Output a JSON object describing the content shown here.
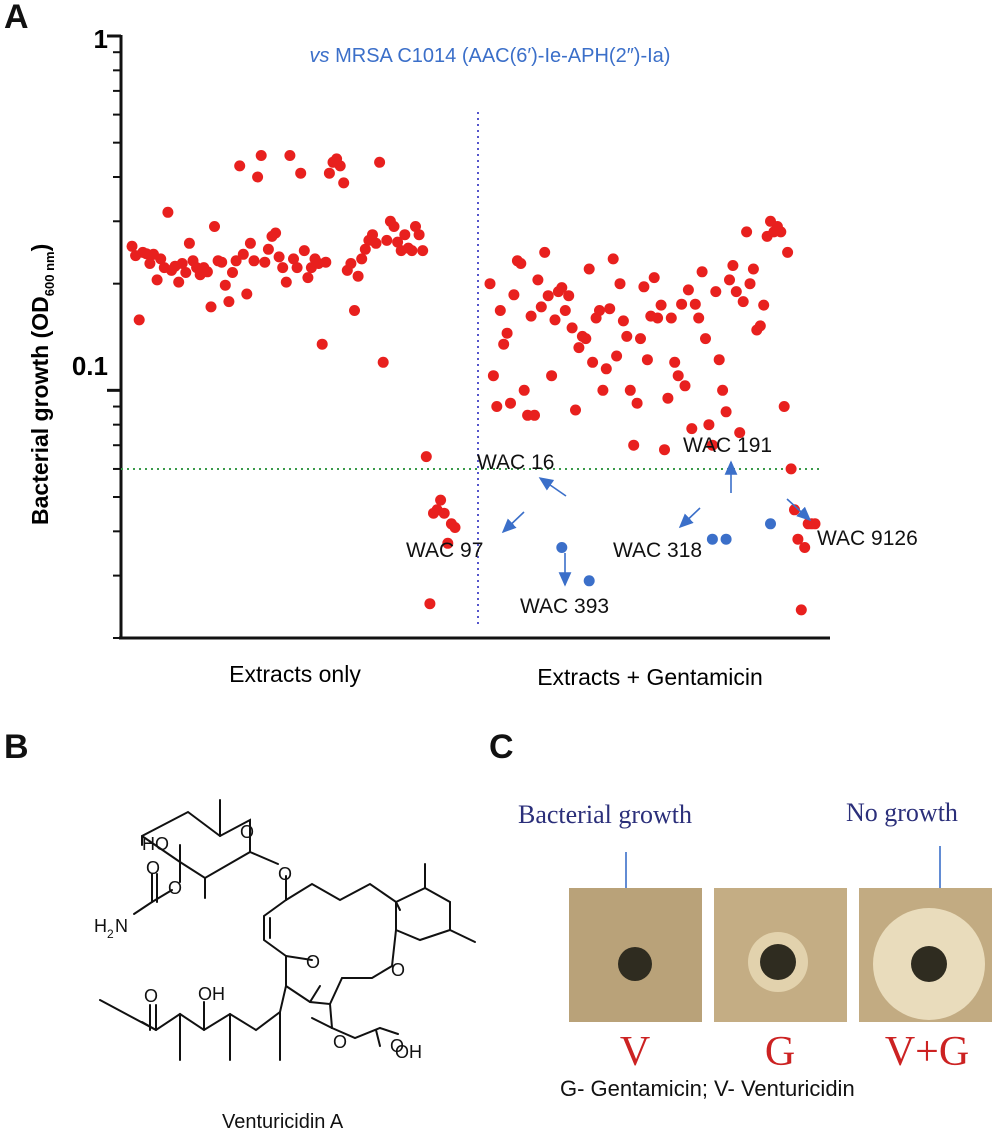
{
  "panels": {
    "a": "A",
    "b": "B",
    "c": "C"
  },
  "chart_data": {
    "type": "scatter",
    "title_prefix": "vs",
    "title": "MRSA C1014 (AAC(6′)-Ie-APH(2″)-Ia)",
    "ylabel_main": "Bacterial  growth (OD",
    "ylabel_sub": "600 nm",
    "ylabel_end": ")",
    "yscale": "log",
    "ylim": [
      0.02,
      1
    ],
    "yticks": [
      "1",
      "0.1"
    ],
    "threshold": 0.06,
    "groups": [
      "Extracts  only",
      "Extracts  + Gentamicin"
    ],
    "series": [
      {
        "name": "Extracts only",
        "color": "#e8201e",
        "points": [
          [
            1,
            0.255
          ],
          [
            2,
            0.24
          ],
          [
            3,
            0.158
          ],
          [
            4,
            0.245
          ],
          [
            5,
            0.243
          ],
          [
            6,
            0.228
          ],
          [
            7,
            0.242
          ],
          [
            8,
            0.205
          ],
          [
            9,
            0.235
          ],
          [
            10,
            0.222
          ],
          [
            11,
            0.318
          ],
          [
            12,
            0.218
          ],
          [
            13,
            0.224
          ],
          [
            14,
            0.202
          ],
          [
            15,
            0.228
          ],
          [
            16,
            0.215
          ],
          [
            17,
            0.26
          ],
          [
            18,
            0.232
          ],
          [
            19,
            0.222
          ],
          [
            20,
            0.212
          ],
          [
            21,
            0.222
          ],
          [
            22,
            0.216
          ],
          [
            23,
            0.172
          ],
          [
            24,
            0.29
          ],
          [
            25,
            0.232
          ],
          [
            26,
            0.23
          ],
          [
            27,
            0.198
          ],
          [
            28,
            0.178
          ],
          [
            29,
            0.215
          ],
          [
            30,
            0.232
          ],
          [
            31,
            0.43
          ],
          [
            32,
            0.242
          ],
          [
            33,
            0.187
          ],
          [
            34,
            0.26
          ],
          [
            35,
            0.232
          ],
          [
            36,
            0.4
          ],
          [
            37,
            0.46
          ],
          [
            38,
            0.23
          ],
          [
            39,
            0.25
          ],
          [
            40,
            0.272
          ],
          [
            41,
            0.278
          ],
          [
            42,
            0.238
          ],
          [
            43,
            0.222
          ],
          [
            44,
            0.202
          ],
          [
            45,
            0.46
          ],
          [
            46,
            0.235
          ],
          [
            47,
            0.222
          ],
          [
            48,
            0.41
          ],
          [
            49,
            0.248
          ],
          [
            50,
            0.208
          ],
          [
            51,
            0.222
          ],
          [
            52,
            0.235
          ],
          [
            53,
            0.228
          ],
          [
            54,
            0.135
          ],
          [
            55,
            0.23
          ],
          [
            56,
            0.41
          ],
          [
            57,
            0.44
          ],
          [
            58,
            0.45
          ],
          [
            59,
            0.43
          ],
          [
            60,
            0.385
          ],
          [
            61,
            0.218
          ],
          [
            62,
            0.228
          ],
          [
            63,
            0.168
          ],
          [
            64,
            0.21
          ],
          [
            65,
            0.235
          ],
          [
            66,
            0.25
          ],
          [
            67,
            0.265
          ],
          [
            68,
            0.275
          ],
          [
            69,
            0.26
          ],
          [
            70,
            0.44
          ],
          [
            71,
            0.12
          ],
          [
            72,
            0.265
          ],
          [
            73,
            0.3
          ],
          [
            74,
            0.29
          ],
          [
            75,
            0.262
          ],
          [
            76,
            0.248
          ],
          [
            77,
            0.275
          ],
          [
            78,
            0.252
          ],
          [
            79,
            0.248
          ],
          [
            80,
            0.29
          ],
          [
            81,
            0.275
          ],
          [
            82,
            0.248
          ],
          [
            83,
            0.065
          ],
          [
            84,
            0.025
          ],
          [
            85,
            0.045
          ],
          [
            86,
            0.046
          ],
          [
            87,
            0.049
          ],
          [
            88,
            0.045
          ],
          [
            89,
            0.037
          ],
          [
            90,
            0.042
          ],
          [
            91,
            0.041
          ]
        ]
      },
      {
        "name": "Extracts + Gentamicin",
        "color": "#e8201e",
        "points": [
          [
            1,
            0.2
          ],
          [
            2,
            0.11
          ],
          [
            3,
            0.09
          ],
          [
            4,
            0.168
          ],
          [
            5,
            0.135
          ],
          [
            6,
            0.145
          ],
          [
            7,
            0.092
          ],
          [
            8,
            0.186
          ],
          [
            9,
            0.232
          ],
          [
            10,
            0.228
          ],
          [
            11,
            0.1
          ],
          [
            12,
            0.085
          ],
          [
            13,
            0.162
          ],
          [
            14,
            0.085
          ],
          [
            15,
            0.205
          ],
          [
            16,
            0.172
          ],
          [
            17,
            0.245
          ],
          [
            18,
            0.185
          ],
          [
            19,
            0.11
          ],
          [
            20,
            0.158
          ],
          [
            21,
            0.19
          ],
          [
            22,
            0.195
          ],
          [
            23,
            0.168
          ],
          [
            24,
            0.185
          ],
          [
            25,
            0.15
          ],
          [
            26,
            0.088
          ],
          [
            27,
            0.132
          ],
          [
            28,
            0.142
          ],
          [
            29,
            0.14
          ],
          [
            30,
            0.22
          ],
          [
            31,
            0.12
          ],
          [
            32,
            0.16
          ],
          [
            33,
            0.168
          ],
          [
            34,
            0.1
          ],
          [
            35,
            0.115
          ],
          [
            36,
            0.17
          ],
          [
            37,
            0.235
          ],
          [
            38,
            0.125
          ],
          [
            39,
            0.2
          ],
          [
            40,
            0.157
          ],
          [
            41,
            0.142
          ],
          [
            42,
            0.1
          ],
          [
            43,
            0.07
          ],
          [
            44,
            0.092
          ],
          [
            45,
            0.14
          ],
          [
            46,
            0.196
          ],
          [
            47,
            0.122
          ],
          [
            48,
            0.162
          ],
          [
            49,
            0.208
          ],
          [
            50,
            0.16
          ],
          [
            51,
            0.174
          ],
          [
            52,
            0.068
          ],
          [
            53,
            0.095
          ],
          [
            54,
            0.16
          ],
          [
            55,
            0.12
          ],
          [
            56,
            0.11
          ],
          [
            57,
            0.175
          ],
          [
            58,
            0.103
          ],
          [
            59,
            0.192
          ],
          [
            60,
            0.078
          ],
          [
            61,
            0.175
          ],
          [
            62,
            0.16
          ],
          [
            63,
            0.216
          ],
          [
            64,
            0.14
          ],
          [
            65,
            0.08
          ],
          [
            66,
            0.07
          ],
          [
            67,
            0.19
          ],
          [
            68,
            0.122
          ],
          [
            69,
            0.1
          ],
          [
            70,
            0.087
          ],
          [
            71,
            0.205
          ],
          [
            72,
            0.225
          ],
          [
            73,
            0.19
          ],
          [
            74,
            0.076
          ],
          [
            75,
            0.178
          ],
          [
            76,
            0.28
          ],
          [
            77,
            0.2
          ],
          [
            78,
            0.22
          ],
          [
            79,
            0.148
          ],
          [
            80,
            0.152
          ],
          [
            81,
            0.174
          ],
          [
            82,
            0.272
          ],
          [
            83,
            0.3
          ],
          [
            84,
            0.28
          ],
          [
            85,
            0.29
          ],
          [
            86,
            0.28
          ],
          [
            87,
            0.09
          ],
          [
            88,
            0.245
          ],
          [
            89,
            0.06
          ],
          [
            90,
            0.046
          ],
          [
            91,
            0.038
          ],
          [
            92,
            0.024
          ],
          [
            93,
            0.036
          ],
          [
            94,
            0.042
          ],
          [
            95,
            0.042
          ],
          [
            96,
            0.042
          ]
        ]
      },
      {
        "name": "Hits",
        "color": "#3b6fc9",
        "points": [
          {
            "label": "WAC 16",
            "x": 22,
            "y": 0.036
          },
          {
            "label": "WAC 393",
            "x": 30,
            "y": 0.029
          },
          {
            "label": "WAC 318",
            "x": 66,
            "y": 0.038
          },
          {
            "label": "WAC 191",
            "x": 70,
            "y": 0.038
          },
          {
            "label": "WAC 9126",
            "x": 83,
            "y": 0.042
          }
        ]
      }
    ],
    "annotations": [
      "WAC 16",
      "WAC 97",
      "WAC 393",
      "WAC 191",
      "WAC 318",
      "WAC 9126"
    ]
  },
  "colors": {
    "red": "#e8201e",
    "blue": "#3b6fc9",
    "threshold": "#3a9a4a",
    "divider": "#5555cc",
    "label_red": "#cc2222",
    "caption_blue": "#2b2f7a"
  },
  "molecule": {
    "name": "Venturicidin A",
    "atom_labels": [
      "HO",
      "O",
      "O",
      "H",
      "2",
      "N",
      "O",
      "O",
      "O",
      "OH",
      "O",
      "OH",
      "O",
      "O",
      "O"
    ]
  },
  "panelC": {
    "caption_left": "Bacterial growth",
    "caption_right": "No growth",
    "plates": [
      "V",
      "G",
      "V+G"
    ],
    "legend": "G- Gentamicin; V- Venturicidin"
  }
}
